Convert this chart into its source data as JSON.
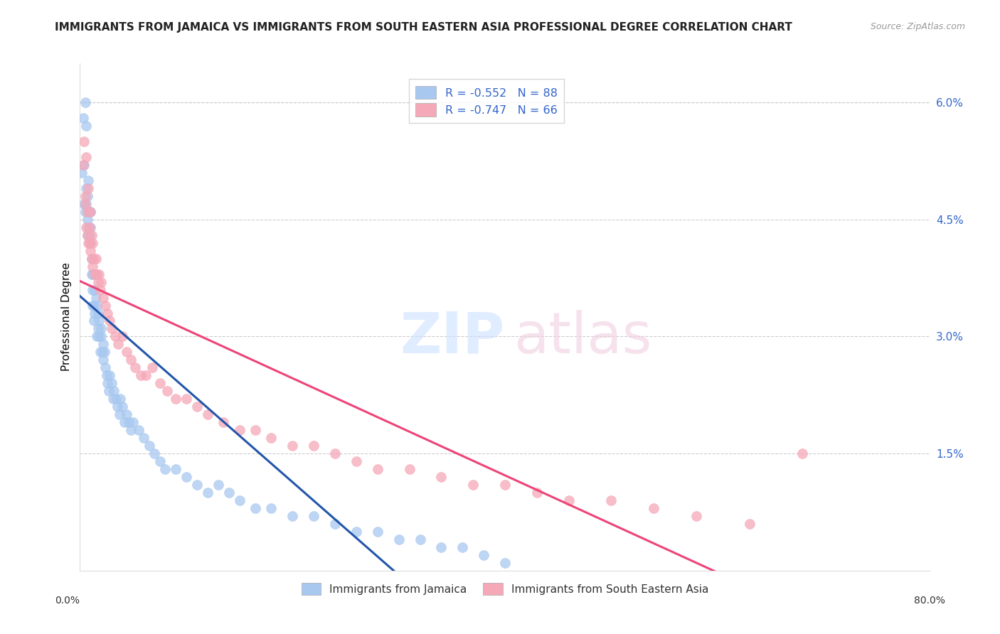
{
  "title": "IMMIGRANTS FROM JAMAICA VS IMMIGRANTS FROM SOUTH EASTERN ASIA PROFESSIONAL DEGREE CORRELATION CHART",
  "source": "Source: ZipAtlas.com",
  "ylabel": "Professional Degree",
  "right_yticks": [
    "6.0%",
    "4.5%",
    "3.0%",
    "1.5%"
  ],
  "right_ytick_vals": [
    0.06,
    0.045,
    0.03,
    0.015
  ],
  "legend_blue": {
    "R": -0.552,
    "N": 88,
    "label": "Immigrants from Jamaica"
  },
  "legend_pink": {
    "R": -0.747,
    "N": 66,
    "label": "Immigrants from South Eastern Asia"
  },
  "blue_color": "#A8C8F0",
  "pink_color": "#F5A8B8",
  "blue_line_color": "#2255AA",
  "pink_line_color": "#EE4477",
  "background_color": "#FFFFFF",
  "title_fontsize": 11,
  "source_fontsize": 9,
  "xlim": [
    0.0,
    0.8
  ],
  "ylim": [
    0.0,
    0.065
  ],
  "blue_scatter_x": [
    0.002,
    0.003,
    0.004,
    0.004,
    0.005,
    0.005,
    0.006,
    0.006,
    0.006,
    0.007,
    0.007,
    0.007,
    0.008,
    0.008,
    0.008,
    0.009,
    0.009,
    0.01,
    0.01,
    0.01,
    0.011,
    0.011,
    0.012,
    0.012,
    0.012,
    0.013,
    0.013,
    0.014,
    0.014,
    0.015,
    0.015,
    0.016,
    0.016,
    0.017,
    0.017,
    0.018,
    0.018,
    0.019,
    0.02,
    0.02,
    0.021,
    0.022,
    0.022,
    0.023,
    0.024,
    0.025,
    0.026,
    0.027,
    0.028,
    0.03,
    0.031,
    0.032,
    0.034,
    0.035,
    0.037,
    0.038,
    0.04,
    0.042,
    0.044,
    0.046,
    0.048,
    0.05,
    0.055,
    0.06,
    0.065,
    0.07,
    0.075,
    0.08,
    0.09,
    0.1,
    0.11,
    0.12,
    0.13,
    0.14,
    0.15,
    0.165,
    0.18,
    0.2,
    0.22,
    0.24,
    0.26,
    0.28,
    0.3,
    0.32,
    0.34,
    0.36,
    0.38,
    0.4
  ],
  "blue_scatter_y": [
    0.051,
    0.058,
    0.047,
    0.052,
    0.06,
    0.046,
    0.049,
    0.047,
    0.057,
    0.045,
    0.048,
    0.043,
    0.05,
    0.046,
    0.044,
    0.046,
    0.043,
    0.046,
    0.044,
    0.042,
    0.038,
    0.04,
    0.034,
    0.036,
    0.038,
    0.034,
    0.032,
    0.033,
    0.036,
    0.038,
    0.035,
    0.034,
    0.03,
    0.033,
    0.031,
    0.03,
    0.032,
    0.028,
    0.03,
    0.031,
    0.028,
    0.027,
    0.029,
    0.028,
    0.026,
    0.025,
    0.024,
    0.023,
    0.025,
    0.024,
    0.022,
    0.023,
    0.022,
    0.021,
    0.02,
    0.022,
    0.021,
    0.019,
    0.02,
    0.019,
    0.018,
    0.019,
    0.018,
    0.017,
    0.016,
    0.015,
    0.014,
    0.013,
    0.013,
    0.012,
    0.011,
    0.01,
    0.011,
    0.01,
    0.009,
    0.008,
    0.008,
    0.007,
    0.007,
    0.006,
    0.005,
    0.005,
    0.004,
    0.004,
    0.003,
    0.003,
    0.002,
    0.001
  ],
  "pink_scatter_x": [
    0.003,
    0.004,
    0.005,
    0.005,
    0.006,
    0.006,
    0.007,
    0.007,
    0.008,
    0.008,
    0.009,
    0.009,
    0.01,
    0.01,
    0.011,
    0.011,
    0.012,
    0.012,
    0.013,
    0.014,
    0.015,
    0.016,
    0.017,
    0.018,
    0.019,
    0.02,
    0.022,
    0.024,
    0.026,
    0.028,
    0.03,
    0.033,
    0.036,
    0.04,
    0.044,
    0.048,
    0.052,
    0.057,
    0.062,
    0.068,
    0.075,
    0.082,
    0.09,
    0.1,
    0.11,
    0.12,
    0.135,
    0.15,
    0.165,
    0.18,
    0.2,
    0.22,
    0.24,
    0.26,
    0.28,
    0.31,
    0.34,
    0.37,
    0.4,
    0.43,
    0.46,
    0.5,
    0.54,
    0.58,
    0.63,
    0.68
  ],
  "pink_scatter_y": [
    0.052,
    0.055,
    0.048,
    0.047,
    0.053,
    0.044,
    0.046,
    0.043,
    0.049,
    0.042,
    0.044,
    0.042,
    0.046,
    0.041,
    0.043,
    0.04,
    0.042,
    0.039,
    0.04,
    0.038,
    0.04,
    0.038,
    0.037,
    0.038,
    0.036,
    0.037,
    0.035,
    0.034,
    0.033,
    0.032,
    0.031,
    0.03,
    0.029,
    0.03,
    0.028,
    0.027,
    0.026,
    0.025,
    0.025,
    0.026,
    0.024,
    0.023,
    0.022,
    0.022,
    0.021,
    0.02,
    0.019,
    0.018,
    0.018,
    0.017,
    0.016,
    0.016,
    0.015,
    0.014,
    0.013,
    0.013,
    0.012,
    0.011,
    0.011,
    0.01,
    0.009,
    0.009,
    0.008,
    0.007,
    0.006,
    0.015
  ]
}
